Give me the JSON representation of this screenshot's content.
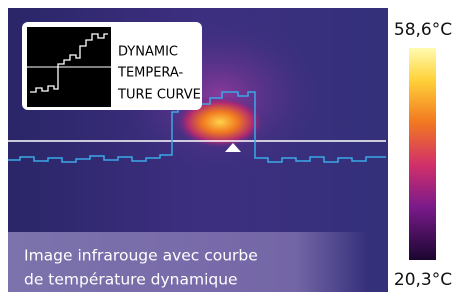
{
  "inset": {
    "lines": [
      "DYNAMIC",
      "TEMPERA-",
      "TURE CURVE"
    ]
  },
  "caption": {
    "lines": [
      "Image infrarouge avec courbe",
      "de température dynamique"
    ]
  },
  "scale": {
    "max": "58,6°C",
    "min": "20,3°C"
  }
}
